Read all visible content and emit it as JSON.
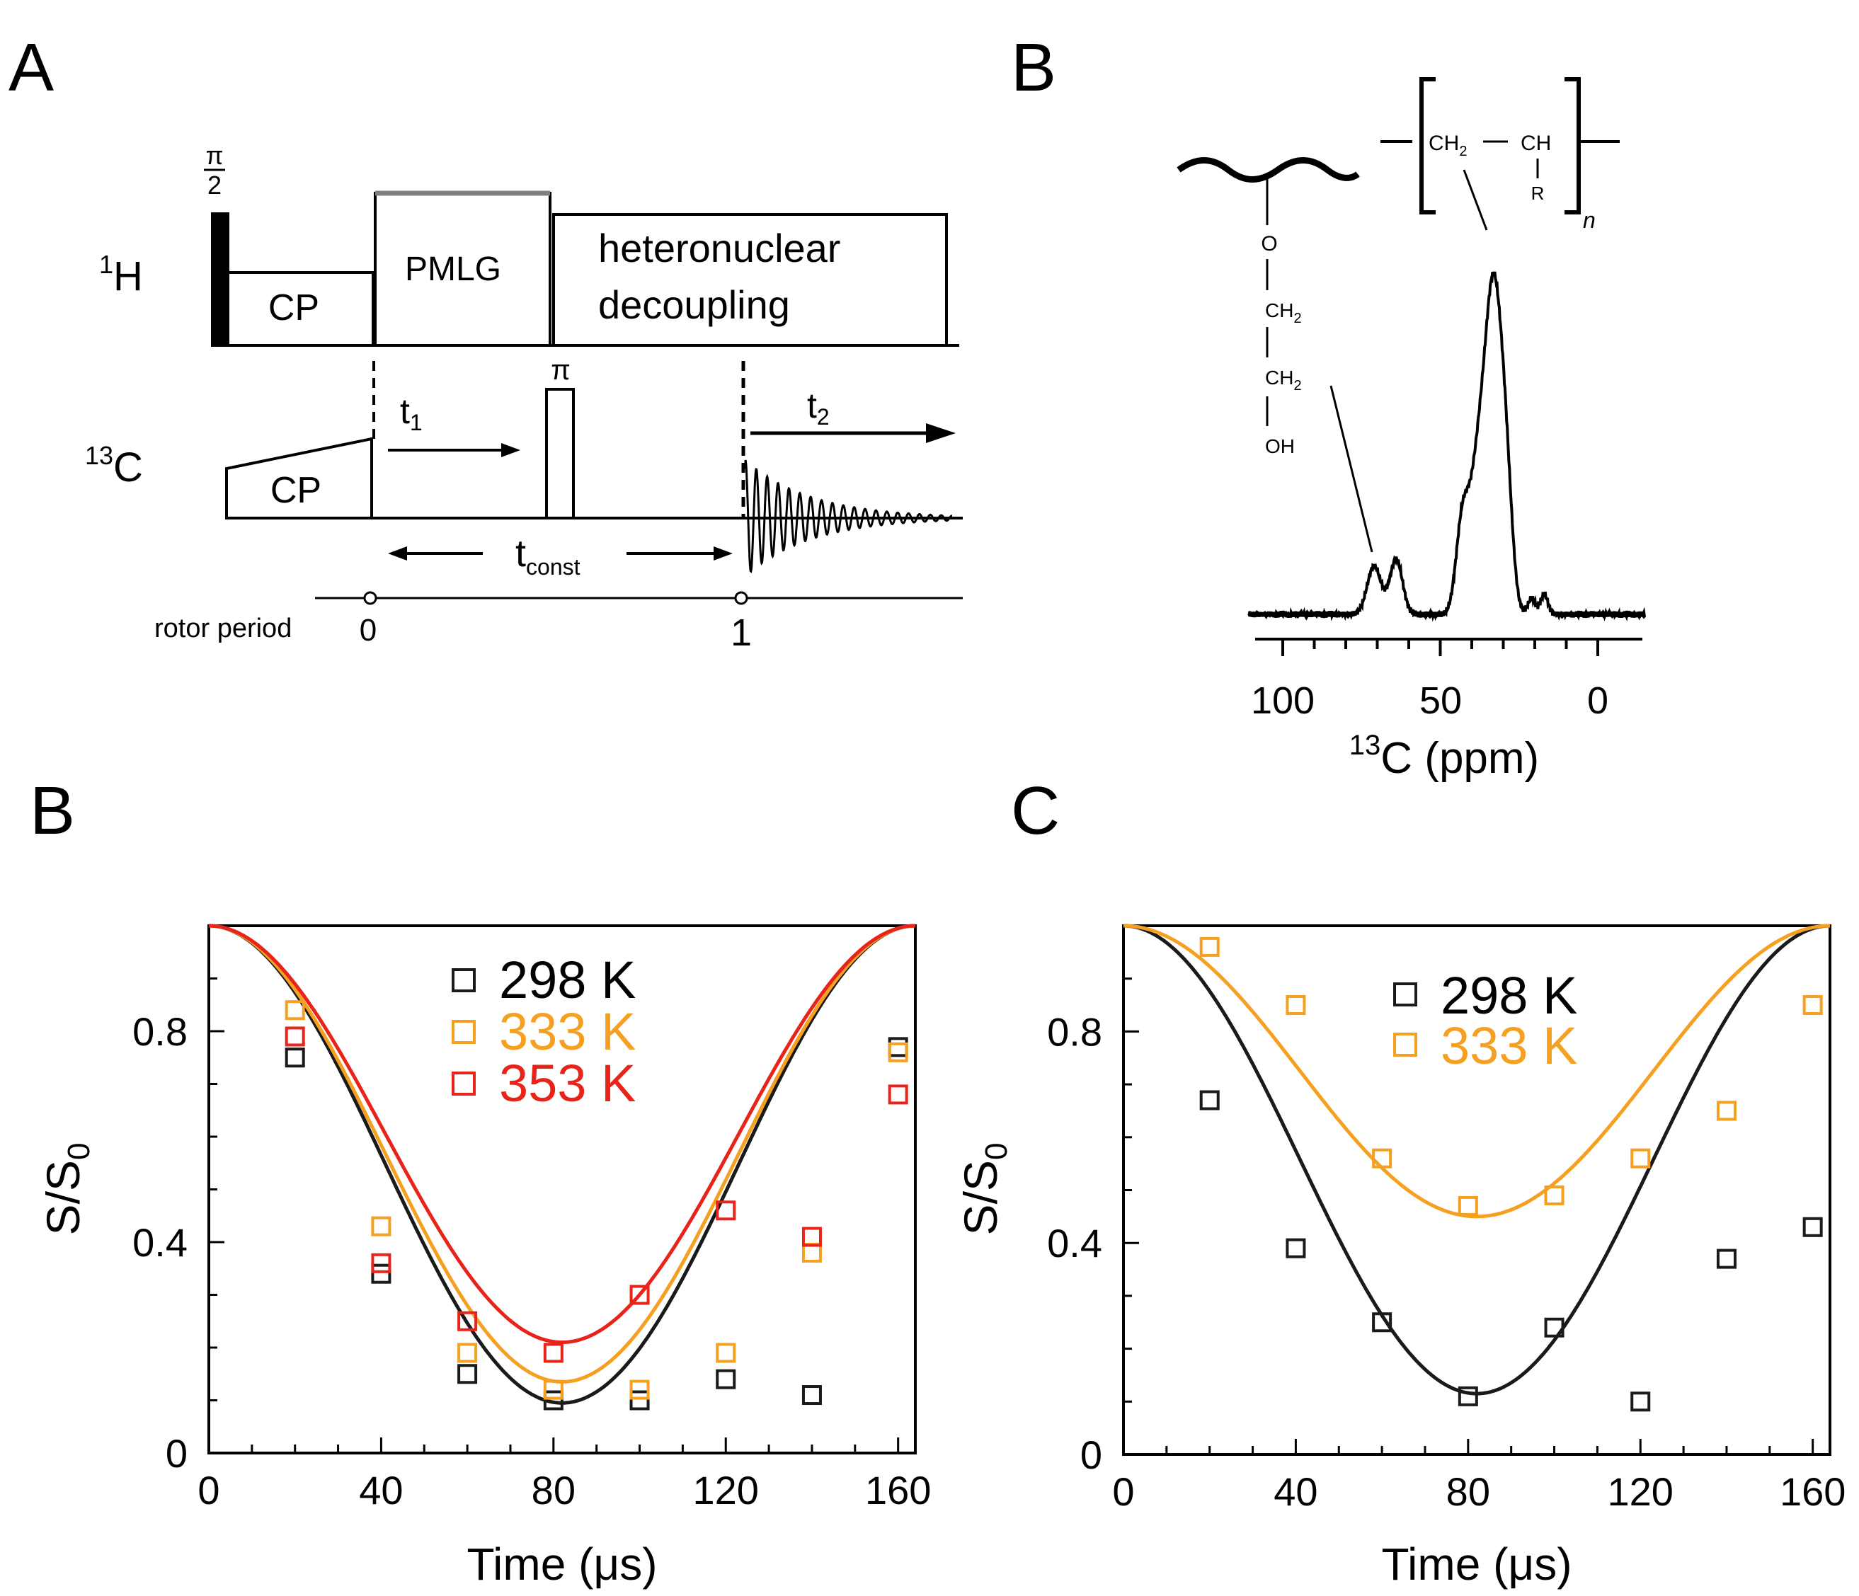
{
  "panel_labels": {
    "a": "A",
    "b_top": "B",
    "b_bottom": "B",
    "c": "C"
  },
  "pulse_sequence": {
    "channel_1h": {
      "sup": "1",
      "letter": "H"
    },
    "channel_13c": {
      "sup": "13",
      "letter": "C"
    },
    "pi_half_num": "π",
    "pi_half_den": "2",
    "cp_label_h": "CP",
    "pmlg_label": "PMLG",
    "decoupling_line1": "heteronuclear",
    "decoupling_line2": "decoupling",
    "cp_label_c": "CP",
    "pi_label": "π",
    "t1_base": "t",
    "t1_sub": "1",
    "t2_base": "t",
    "t2_sub": "2",
    "tconst_base": "t",
    "tconst_sub": "const",
    "rotor_label": "rotor  period",
    "rotor_0": "0",
    "rotor_1": "1"
  },
  "spectrum": {
    "structure": {
      "ch2": "CH",
      "ch2_sub": "2",
      "ch": "CH",
      "r": "R",
      "n": "n",
      "o": "O",
      "ch2a": "CH",
      "ch2a_sub": "2",
      "ch2b": "CH",
      "ch2b_sub": "2",
      "oh": "OH"
    },
    "x_ticks": [
      "100",
      "50",
      "0"
    ],
    "xlabel_sup": "13",
    "xlabel_rest": "C (ppm)"
  },
  "chart_data": [
    {
      "type": "scatter",
      "panel": "B",
      "xlabel": "Time (μs)",
      "ylabel_base": "S/S",
      "ylabel_sub": "0",
      "xlim": [
        0,
        164
      ],
      "ylim": [
        0,
        1.0
      ],
      "x_ticks": [
        "0",
        "40",
        "80",
        "120",
        "160"
      ],
      "y_ticks": [
        "0",
        "0.4",
        "0.8"
      ],
      "legend_suffix": " K",
      "series": [
        {
          "name": "298",
          "color": "#1a1a1a",
          "min": 0.095,
          "x": [
            20,
            40,
            60,
            80,
            100,
            120,
            140,
            160
          ],
          "y": [
            0.75,
            0.34,
            0.15,
            0.1,
            0.1,
            0.14,
            0.11,
            0.77
          ]
        },
        {
          "name": "333",
          "color": "#f5a020",
          "min": 0.135,
          "x": [
            20,
            40,
            60,
            80,
            100,
            120,
            140,
            160
          ],
          "y": [
            0.84,
            0.43,
            0.19,
            0.12,
            0.12,
            0.19,
            0.38,
            0.76
          ]
        },
        {
          "name": "353",
          "color": "#e8231a",
          "min": 0.21,
          "x": [
            20,
            40,
            60,
            80,
            100,
            120,
            140,
            160
          ],
          "y": [
            0.79,
            0.36,
            0.25,
            0.19,
            0.3,
            0.46,
            0.41,
            0.68
          ]
        }
      ]
    },
    {
      "type": "scatter",
      "panel": "C",
      "xlabel": "Time (μs)",
      "ylabel_base": "S/S",
      "ylabel_sub": "0",
      "xlim": [
        0,
        164
      ],
      "ylim": [
        0,
        1.0
      ],
      "x_ticks": [
        "0",
        "40",
        "80",
        "120",
        "160"
      ],
      "y_ticks": [
        "0",
        "0.4",
        "0.8"
      ],
      "legend_suffix": " K",
      "series": [
        {
          "name": "298",
          "color": "#1a1a1a",
          "min": 0.115,
          "x": [
            20,
            40,
            60,
            80,
            100,
            120,
            140,
            160
          ],
          "y": [
            0.67,
            0.39,
            0.25,
            0.11,
            0.24,
            0.1,
            0.37,
            0.43
          ]
        },
        {
          "name": "333",
          "color": "#f5a020",
          "min": 0.45,
          "x": [
            20,
            40,
            60,
            80,
            100,
            120,
            140,
            160
          ],
          "y": [
            0.96,
            0.85,
            0.56,
            0.47,
            0.49,
            0.56,
            0.65,
            0.85
          ]
        }
      ]
    }
  ]
}
